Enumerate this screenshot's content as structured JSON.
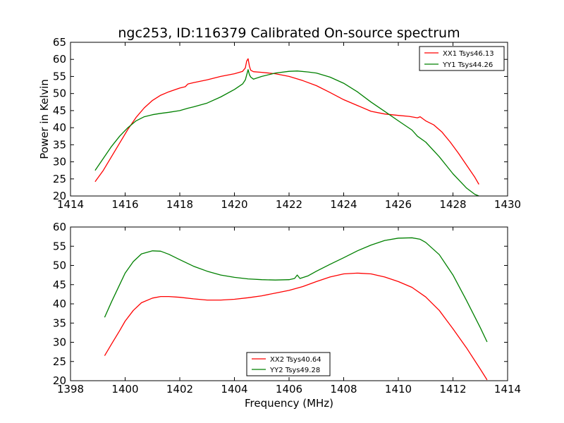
{
  "figure": {
    "title": "ngc253, ID:116379 Calibrated On-source spectrum"
  },
  "chart_data": [
    {
      "type": "line",
      "title": "ngc253, ID:116379 Calibrated On-source spectrum",
      "xlabel": "",
      "ylabel": "Power in Kelvin",
      "xlim": [
        1414,
        1430
      ],
      "ylim": [
        20,
        65
      ],
      "xticks": [
        1414,
        1416,
        1418,
        1420,
        1422,
        1424,
        1426,
        1428,
        1430
      ],
      "yticks": [
        20,
        25,
        30,
        35,
        40,
        45,
        50,
        55,
        60,
        65
      ],
      "grid": false,
      "legend": "top-right",
      "series": [
        {
          "name": "XX1 Tsys46.13",
          "color": "#ff0000",
          "x": [
            1414.9,
            1415.2,
            1415.5,
            1415.8,
            1416.1,
            1416.4,
            1416.7,
            1417.0,
            1417.3,
            1417.6,
            1418.0,
            1418.2,
            1418.3,
            1418.5,
            1419.0,
            1419.5,
            1420.0,
            1420.3,
            1420.4,
            1420.45,
            1420.5,
            1420.55,
            1420.6,
            1420.7,
            1421.0,
            1421.5,
            1422.0,
            1422.5,
            1423.0,
            1423.5,
            1424.0,
            1424.5,
            1425.0,
            1425.5,
            1426.0,
            1426.4,
            1426.7,
            1426.8,
            1427.0,
            1427.3,
            1427.6,
            1427.9,
            1428.2,
            1428.5,
            1428.8,
            1428.95
          ],
          "y": [
            24.2,
            27.5,
            31.5,
            35.5,
            39.5,
            43.0,
            45.8,
            48.0,
            49.5,
            50.5,
            51.6,
            52.0,
            52.8,
            53.2,
            54.0,
            55.0,
            55.8,
            56.5,
            57.5,
            59.5,
            60.2,
            58.0,
            56.8,
            56.4,
            56.2,
            55.8,
            55.0,
            53.8,
            52.3,
            50.3,
            48.2,
            46.5,
            44.8,
            44.0,
            43.6,
            43.3,
            42.9,
            43.2,
            42.0,
            40.8,
            38.7,
            35.8,
            32.5,
            29.0,
            25.5,
            23.4
          ]
        },
        {
          "name": "YY1 Tsys44.26",
          "color": "#008000",
          "x": [
            1414.9,
            1415.2,
            1415.5,
            1415.8,
            1416.1,
            1416.4,
            1416.7,
            1417.0,
            1417.3,
            1417.6,
            1418.0,
            1418.3,
            1418.5,
            1419.0,
            1419.5,
            1420.0,
            1420.3,
            1420.4,
            1420.5,
            1420.55,
            1420.6,
            1420.7,
            1421.0,
            1421.5,
            1422.0,
            1422.3,
            1422.7,
            1423.0,
            1423.5,
            1424.0,
            1424.5,
            1425.0,
            1425.5,
            1426.0,
            1426.5,
            1426.7,
            1427.0,
            1427.5,
            1428.0,
            1428.5,
            1428.8,
            1428.95
          ],
          "y": [
            27.5,
            31.0,
            34.5,
            37.5,
            40.0,
            42.0,
            43.2,
            43.8,
            44.2,
            44.5,
            45.0,
            45.7,
            46.1,
            47.2,
            49.0,
            51.2,
            52.8,
            54.0,
            57.0,
            55.5,
            54.8,
            54.2,
            55.0,
            56.0,
            56.5,
            56.6,
            56.3,
            56.0,
            54.8,
            53.0,
            50.5,
            47.5,
            44.8,
            42.0,
            39.3,
            37.5,
            35.8,
            31.5,
            26.5,
            22.3,
            20.5,
            20.0
          ]
        }
      ]
    },
    {
      "type": "line",
      "title": "",
      "xlabel": "Frequency (MHz)",
      "ylabel": "",
      "xlim": [
        1398,
        1414
      ],
      "ylim": [
        20,
        60
      ],
      "xticks": [
        1398,
        1400,
        1402,
        1404,
        1406,
        1408,
        1410,
        1412,
        1414
      ],
      "yticks": [
        20,
        25,
        30,
        35,
        40,
        45,
        50,
        55,
        60
      ],
      "grid": false,
      "legend": "bottom-center",
      "series": [
        {
          "name": "XX2 Tsys40.64",
          "color": "#ff0000",
          "x": [
            1399.25,
            1399.5,
            1399.8,
            1400.0,
            1400.3,
            1400.6,
            1401.0,
            1401.3,
            1401.6,
            1402.0,
            1402.5,
            1403.0,
            1403.5,
            1404.0,
            1404.5,
            1405.0,
            1405.5,
            1406.0,
            1406.5,
            1407.0,
            1407.5,
            1408.0,
            1408.5,
            1409.0,
            1409.5,
            1410.0,
            1410.5,
            1411.0,
            1411.5,
            1412.0,
            1412.5,
            1413.0,
            1413.25
          ],
          "y": [
            26.5,
            29.5,
            33.0,
            35.5,
            38.3,
            40.3,
            41.5,
            41.9,
            41.9,
            41.7,
            41.3,
            41.0,
            41.0,
            41.2,
            41.6,
            42.1,
            42.8,
            43.5,
            44.5,
            45.8,
            47.0,
            47.8,
            48.0,
            47.8,
            47.0,
            45.8,
            44.3,
            41.8,
            38.3,
            33.5,
            28.5,
            23.0,
            20.2
          ]
        },
        {
          "name": "YY2 Tsys49.28",
          "color": "#008000",
          "x": [
            1399.25,
            1399.5,
            1399.8,
            1400.0,
            1400.3,
            1400.6,
            1401.0,
            1401.3,
            1401.6,
            1402.0,
            1402.5,
            1403.0,
            1403.5,
            1404.0,
            1404.5,
            1405.0,
            1405.5,
            1406.0,
            1406.2,
            1406.3,
            1406.4,
            1406.7,
            1407.0,
            1407.5,
            1408.0,
            1408.5,
            1409.0,
            1409.5,
            1410.0,
            1410.5,
            1410.8,
            1411.0,
            1411.5,
            1412.0,
            1412.5,
            1413.0,
            1413.25
          ],
          "y": [
            36.5,
            40.5,
            45.0,
            48.0,
            51.0,
            53.0,
            53.8,
            53.7,
            52.9,
            51.5,
            49.8,
            48.5,
            47.5,
            46.9,
            46.5,
            46.3,
            46.2,
            46.3,
            46.6,
            47.5,
            46.6,
            47.3,
            48.5,
            50.3,
            52.0,
            53.8,
            55.3,
            56.5,
            57.1,
            57.2,
            56.8,
            56.0,
            52.8,
            47.5,
            40.8,
            33.8,
            30.1
          ]
        }
      ]
    }
  ]
}
